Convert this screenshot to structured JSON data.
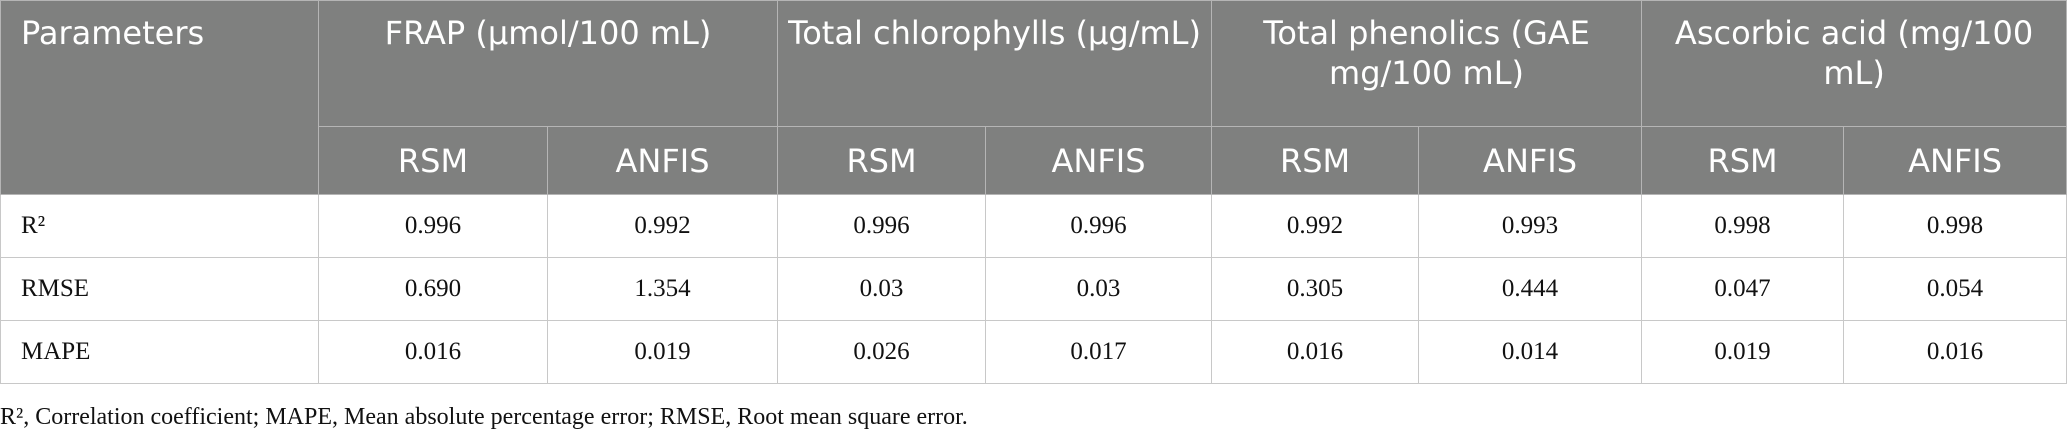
{
  "table": {
    "first_header": "Parameters",
    "groups": [
      "FRAP (μmol/100 mL)",
      "Total chlorophylls (μg/mL)",
      "Total phenolics (GAE mg/100 mL)",
      "Ascorbic acid (mg/100 mL)"
    ],
    "subheaders": [
      [
        "RSM",
        "ANFIS"
      ],
      [
        "RSM",
        "ANFIS"
      ],
      [
        "RSM",
        "ANFIS"
      ],
      [
        "RSM",
        "ANFIS"
      ]
    ],
    "rows": [
      [
        "R²",
        "0.996",
        "0.992",
        "0.996",
        "0.996",
        "0.992",
        "0.993",
        "0.998",
        "0.998"
      ],
      [
        "RMSE",
        "0.690",
        "1.354",
        "0.03",
        "0.03",
        "0.305",
        "0.444",
        "0.047",
        "0.054"
      ],
      [
        "MAPE",
        "0.016",
        "0.019",
        "0.026",
        "0.017",
        "0.016",
        "0.014",
        "0.019",
        "0.016"
      ]
    ]
  },
  "footnote": "R², Correlation coefficient; MAPE, Mean absolute percentage error; RMSE, Root mean square error."
}
